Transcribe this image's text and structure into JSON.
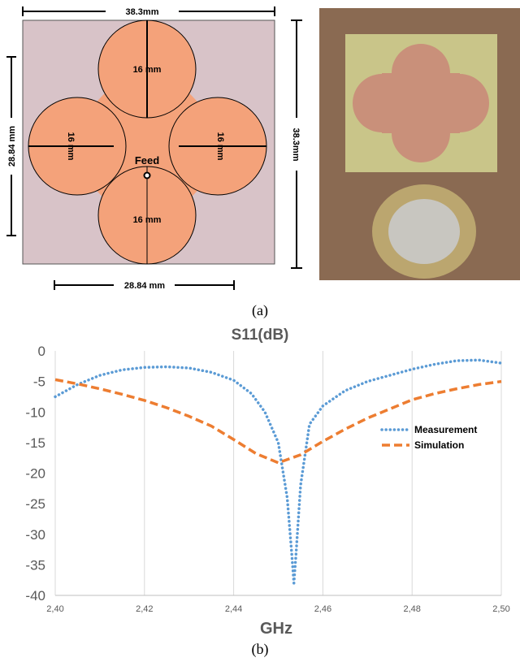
{
  "diagram": {
    "dimensions": [
      "38.3mm",
      "28.84 mm",
      "38.3mm",
      "28.84 mm"
    ],
    "circle_labels": [
      "16 mm",
      "16 mm",
      "16 mm",
      "16 mm"
    ],
    "feed_label": "Feed"
  },
  "captions": [
    "(a)",
    "(b)"
  ],
  "chart_data": {
    "type": "line",
    "title": "S11(dB)",
    "x_label": "GHz",
    "xlim": [
      2.4,
      2.5
    ],
    "xticks": [
      {
        "value": 2.4,
        "label": "2,40"
      },
      {
        "value": 2.42,
        "label": "2,42"
      },
      {
        "value": 2.44,
        "label": "2,44"
      },
      {
        "value": 2.46,
        "label": "2,46"
      },
      {
        "value": 2.48,
        "label": "2,48"
      },
      {
        "value": 2.5,
        "label": "2,50"
      }
    ],
    "ylim": [
      -40,
      0
    ],
    "yticks": [
      0,
      -5,
      -10,
      -15,
      -20,
      -25,
      -30,
      -35,
      -40
    ],
    "grid": "x",
    "legend": "right",
    "series": [
      {
        "name": "Measurement",
        "color": "#5b9bd5",
        "style": "dotted",
        "x": [
          2.4,
          2.405,
          2.41,
          2.415,
          2.42,
          2.425,
          2.43,
          2.435,
          2.44,
          2.444,
          2.447,
          2.45,
          2.452,
          2.453,
          2.4535,
          2.454,
          2.455,
          2.457,
          2.46,
          2.465,
          2.47,
          2.475,
          2.48,
          2.485,
          2.49,
          2.495,
          2.5
        ],
        "values": [
          -7.5,
          -5.5,
          -4,
          -3.1,
          -2.7,
          -2.6,
          -2.8,
          -3.5,
          -4.8,
          -7,
          -10,
          -15,
          -24,
          -33,
          -38,
          -33,
          -22,
          -12,
          -9,
          -6.5,
          -5,
          -4,
          -3,
          -2.2,
          -1.6,
          -1.5,
          -2
        ]
      },
      {
        "name": "Simulation",
        "color": "#ed7d31",
        "style": "dashed",
        "x": [
          2.4,
          2.405,
          2.41,
          2.415,
          2.42,
          2.425,
          2.43,
          2.435,
          2.44,
          2.445,
          2.45,
          2.455,
          2.46,
          2.465,
          2.47,
          2.475,
          2.48,
          2.485,
          2.49,
          2.495,
          2.5
        ],
        "values": [
          -4.7,
          -5.4,
          -6.2,
          -7.1,
          -8.1,
          -9.3,
          -10.7,
          -12.3,
          -14.5,
          -16.8,
          -18.3,
          -17,
          -14.8,
          -12.8,
          -11,
          -9.5,
          -8,
          -7,
          -6.2,
          -5.5,
          -5
        ]
      }
    ]
  }
}
